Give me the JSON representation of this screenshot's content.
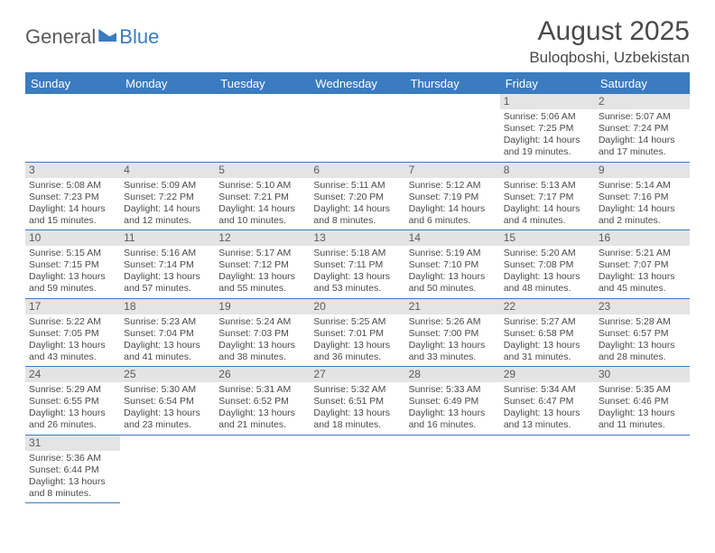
{
  "logo": {
    "text1": "General",
    "text2": "Blue"
  },
  "title": "August 2025",
  "location": "Buloqboshi, Uzbekistan",
  "colors": {
    "accent": "#3b7bbf",
    "daynum_bg": "#e4e4e4",
    "text": "#4a4a4a"
  },
  "day_headers": [
    "Sunday",
    "Monday",
    "Tuesday",
    "Wednesday",
    "Thursday",
    "Friday",
    "Saturday"
  ],
  "weeks": [
    [
      null,
      null,
      null,
      null,
      null,
      {
        "n": "1",
        "sr": "Sunrise: 5:06 AM",
        "ss": "Sunset: 7:25 PM",
        "d1": "Daylight: 14 hours",
        "d2": "and 19 minutes."
      },
      {
        "n": "2",
        "sr": "Sunrise: 5:07 AM",
        "ss": "Sunset: 7:24 PM",
        "d1": "Daylight: 14 hours",
        "d2": "and 17 minutes."
      }
    ],
    [
      {
        "n": "3",
        "sr": "Sunrise: 5:08 AM",
        "ss": "Sunset: 7:23 PM",
        "d1": "Daylight: 14 hours",
        "d2": "and 15 minutes."
      },
      {
        "n": "4",
        "sr": "Sunrise: 5:09 AM",
        "ss": "Sunset: 7:22 PM",
        "d1": "Daylight: 14 hours",
        "d2": "and 12 minutes."
      },
      {
        "n": "5",
        "sr": "Sunrise: 5:10 AM",
        "ss": "Sunset: 7:21 PM",
        "d1": "Daylight: 14 hours",
        "d2": "and 10 minutes."
      },
      {
        "n": "6",
        "sr": "Sunrise: 5:11 AM",
        "ss": "Sunset: 7:20 PM",
        "d1": "Daylight: 14 hours",
        "d2": "and 8 minutes."
      },
      {
        "n": "7",
        "sr": "Sunrise: 5:12 AM",
        "ss": "Sunset: 7:19 PM",
        "d1": "Daylight: 14 hours",
        "d2": "and 6 minutes."
      },
      {
        "n": "8",
        "sr": "Sunrise: 5:13 AM",
        "ss": "Sunset: 7:17 PM",
        "d1": "Daylight: 14 hours",
        "d2": "and 4 minutes."
      },
      {
        "n": "9",
        "sr": "Sunrise: 5:14 AM",
        "ss": "Sunset: 7:16 PM",
        "d1": "Daylight: 14 hours",
        "d2": "and 2 minutes."
      }
    ],
    [
      {
        "n": "10",
        "sr": "Sunrise: 5:15 AM",
        "ss": "Sunset: 7:15 PM",
        "d1": "Daylight: 13 hours",
        "d2": "and 59 minutes."
      },
      {
        "n": "11",
        "sr": "Sunrise: 5:16 AM",
        "ss": "Sunset: 7:14 PM",
        "d1": "Daylight: 13 hours",
        "d2": "and 57 minutes."
      },
      {
        "n": "12",
        "sr": "Sunrise: 5:17 AM",
        "ss": "Sunset: 7:12 PM",
        "d1": "Daylight: 13 hours",
        "d2": "and 55 minutes."
      },
      {
        "n": "13",
        "sr": "Sunrise: 5:18 AM",
        "ss": "Sunset: 7:11 PM",
        "d1": "Daylight: 13 hours",
        "d2": "and 53 minutes."
      },
      {
        "n": "14",
        "sr": "Sunrise: 5:19 AM",
        "ss": "Sunset: 7:10 PM",
        "d1": "Daylight: 13 hours",
        "d2": "and 50 minutes."
      },
      {
        "n": "15",
        "sr": "Sunrise: 5:20 AM",
        "ss": "Sunset: 7:08 PM",
        "d1": "Daylight: 13 hours",
        "d2": "and 48 minutes."
      },
      {
        "n": "16",
        "sr": "Sunrise: 5:21 AM",
        "ss": "Sunset: 7:07 PM",
        "d1": "Daylight: 13 hours",
        "d2": "and 45 minutes."
      }
    ],
    [
      {
        "n": "17",
        "sr": "Sunrise: 5:22 AM",
        "ss": "Sunset: 7:05 PM",
        "d1": "Daylight: 13 hours",
        "d2": "and 43 minutes."
      },
      {
        "n": "18",
        "sr": "Sunrise: 5:23 AM",
        "ss": "Sunset: 7:04 PM",
        "d1": "Daylight: 13 hours",
        "d2": "and 41 minutes."
      },
      {
        "n": "19",
        "sr": "Sunrise: 5:24 AM",
        "ss": "Sunset: 7:03 PM",
        "d1": "Daylight: 13 hours",
        "d2": "and 38 minutes."
      },
      {
        "n": "20",
        "sr": "Sunrise: 5:25 AM",
        "ss": "Sunset: 7:01 PM",
        "d1": "Daylight: 13 hours",
        "d2": "and 36 minutes."
      },
      {
        "n": "21",
        "sr": "Sunrise: 5:26 AM",
        "ss": "Sunset: 7:00 PM",
        "d1": "Daylight: 13 hours",
        "d2": "and 33 minutes."
      },
      {
        "n": "22",
        "sr": "Sunrise: 5:27 AM",
        "ss": "Sunset: 6:58 PM",
        "d1": "Daylight: 13 hours",
        "d2": "and 31 minutes."
      },
      {
        "n": "23",
        "sr": "Sunrise: 5:28 AM",
        "ss": "Sunset: 6:57 PM",
        "d1": "Daylight: 13 hours",
        "d2": "and 28 minutes."
      }
    ],
    [
      {
        "n": "24",
        "sr": "Sunrise: 5:29 AM",
        "ss": "Sunset: 6:55 PM",
        "d1": "Daylight: 13 hours",
        "d2": "and 26 minutes."
      },
      {
        "n": "25",
        "sr": "Sunrise: 5:30 AM",
        "ss": "Sunset: 6:54 PM",
        "d1": "Daylight: 13 hours",
        "d2": "and 23 minutes."
      },
      {
        "n": "26",
        "sr": "Sunrise: 5:31 AM",
        "ss": "Sunset: 6:52 PM",
        "d1": "Daylight: 13 hours",
        "d2": "and 21 minutes."
      },
      {
        "n": "27",
        "sr": "Sunrise: 5:32 AM",
        "ss": "Sunset: 6:51 PM",
        "d1": "Daylight: 13 hours",
        "d2": "and 18 minutes."
      },
      {
        "n": "28",
        "sr": "Sunrise: 5:33 AM",
        "ss": "Sunset: 6:49 PM",
        "d1": "Daylight: 13 hours",
        "d2": "and 16 minutes."
      },
      {
        "n": "29",
        "sr": "Sunrise: 5:34 AM",
        "ss": "Sunset: 6:47 PM",
        "d1": "Daylight: 13 hours",
        "d2": "and 13 minutes."
      },
      {
        "n": "30",
        "sr": "Sunrise: 5:35 AM",
        "ss": "Sunset: 6:46 PM",
        "d1": "Daylight: 13 hours",
        "d2": "and 11 minutes."
      }
    ],
    [
      {
        "n": "31",
        "sr": "Sunrise: 5:36 AM",
        "ss": "Sunset: 6:44 PM",
        "d1": "Daylight: 13 hours",
        "d2": "and 8 minutes."
      },
      null,
      null,
      null,
      null,
      null,
      null
    ]
  ]
}
